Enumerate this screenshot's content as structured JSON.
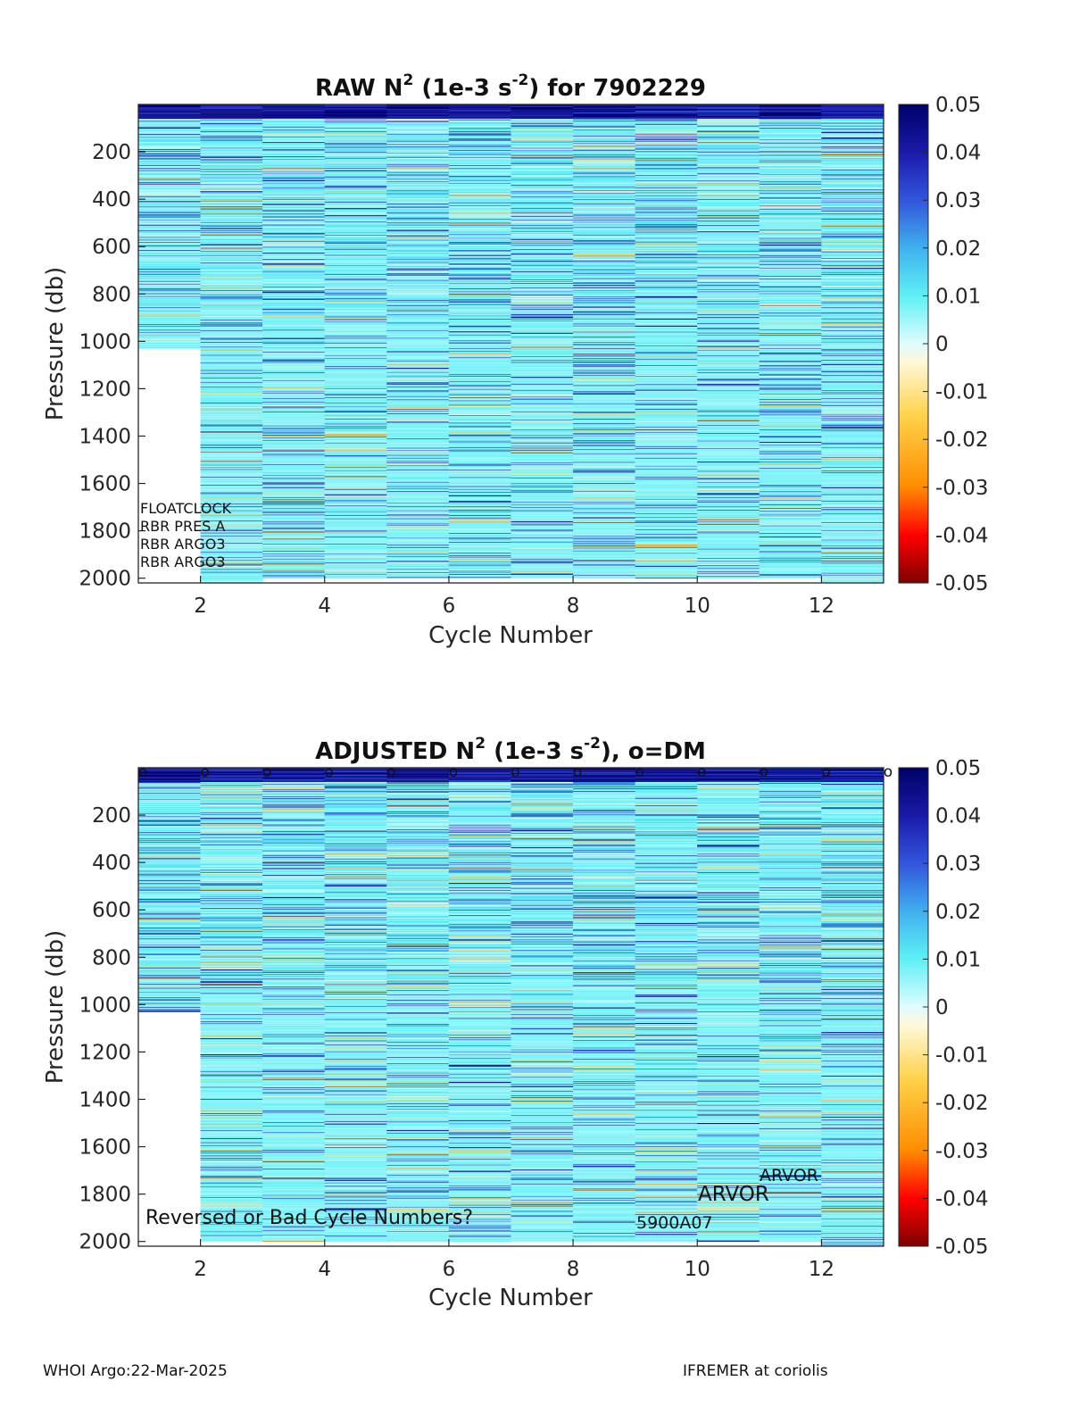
{
  "footer": {
    "left": "WHOI Argo:22-Mar-2025",
    "right": "IFREMER at coriolis"
  },
  "colors": {
    "colormap_anchors": [
      "#7f0000",
      "#ff0000",
      "#ff8c00",
      "#ffd24a",
      "#fff7d6",
      "#dffcff",
      "#5ef0f5",
      "#3fb0ef",
      "#3355dd",
      "#1a1aaa",
      "#00006a"
    ],
    "nan": "#ffffff"
  },
  "chart_data": [
    {
      "type": "heatmap",
      "name": "raw",
      "title_main": "RAW N",
      "title_sup": "2",
      "title_mid": " (1e-3 s",
      "title_sup2": "-2",
      "title_end": ") for 7902229",
      "xlabel": "Cycle Number",
      "ylabel": "Pressure (db)",
      "x_ticks": [
        "2",
        "4",
        "6",
        "8",
        "10",
        "12"
      ],
      "x_tick_values": [
        2,
        4,
        6,
        8,
        10,
        12
      ],
      "y_ticks": [
        "200",
        "400",
        "600",
        "800",
        "1000",
        "1200",
        "1400",
        "1600",
        "1800",
        "2000"
      ],
      "y_tick_values": [
        200,
        400,
        600,
        800,
        1000,
        1200,
        1400,
        1600,
        1800,
        2000
      ],
      "xlim": [
        1,
        13
      ],
      "ylim": [
        0,
        2020
      ],
      "y_reversed": true,
      "cycles": [
        1,
        2,
        3,
        4,
        5,
        6,
        7,
        8,
        9,
        10,
        11,
        12
      ],
      "max_pressure": [
        1030,
        2020,
        2000,
        2000,
        2000,
        2000,
        2000,
        2000,
        2000,
        2000,
        2000,
        2020
      ],
      "colorbar": {
        "min": -0.05,
        "max": 0.05,
        "ticks": [
          "0.05",
          "0.04",
          "0.03",
          "0.02",
          "0.01",
          "0",
          "-0.01",
          "-0.02",
          "-0.03",
          "-0.04",
          "-0.05"
        ]
      },
      "annotations": [
        "FLOATCLOCK",
        "RBR PRES A",
        "RBR ARGO3",
        "RBR ARGO3"
      ],
      "dm_markers": []
    },
    {
      "type": "heatmap",
      "name": "adjusted",
      "title_main": "ADJUSTED N",
      "title_sup": "2",
      "title_mid": " (1e-3 s",
      "title_sup2": "-2",
      "title_end": "), o=DM",
      "xlabel": "Cycle Number",
      "ylabel": "Pressure (db)",
      "x_ticks": [
        "2",
        "4",
        "6",
        "8",
        "10",
        "12"
      ],
      "x_tick_values": [
        2,
        4,
        6,
        8,
        10,
        12
      ],
      "y_ticks": [
        "200",
        "400",
        "600",
        "800",
        "1000",
        "1200",
        "1400",
        "1600",
        "1800",
        "2000"
      ],
      "y_tick_values": [
        200,
        400,
        600,
        800,
        1000,
        1200,
        1400,
        1600,
        1800,
        2000
      ],
      "xlim": [
        1,
        13
      ],
      "ylim": [
        0,
        2020
      ],
      "y_reversed": true,
      "cycles": [
        1,
        2,
        3,
        4,
        5,
        6,
        7,
        8,
        9,
        10,
        11,
        12
      ],
      "max_pressure": [
        1030,
        2000,
        2000,
        2000,
        2000,
        2000,
        2000,
        2000,
        2000,
        2000,
        2000,
        2020
      ],
      "colorbar": {
        "min": -0.05,
        "max": 0.05,
        "ticks": [
          "0.05",
          "0.04",
          "0.03",
          "0.02",
          "0.01",
          "0",
          "-0.01",
          "-0.02",
          "-0.03",
          "-0.04",
          "-0.05"
        ]
      },
      "annotations": [
        "Reversed or Bad Cycle Numbers?",
        "ARVOR",
        "ARVOR",
        "5900A07"
      ],
      "dm_marker_label": "o",
      "dm_markers": [
        1,
        2,
        3,
        4,
        5,
        6,
        7,
        8,
        9,
        10,
        11,
        12,
        13
      ]
    }
  ]
}
